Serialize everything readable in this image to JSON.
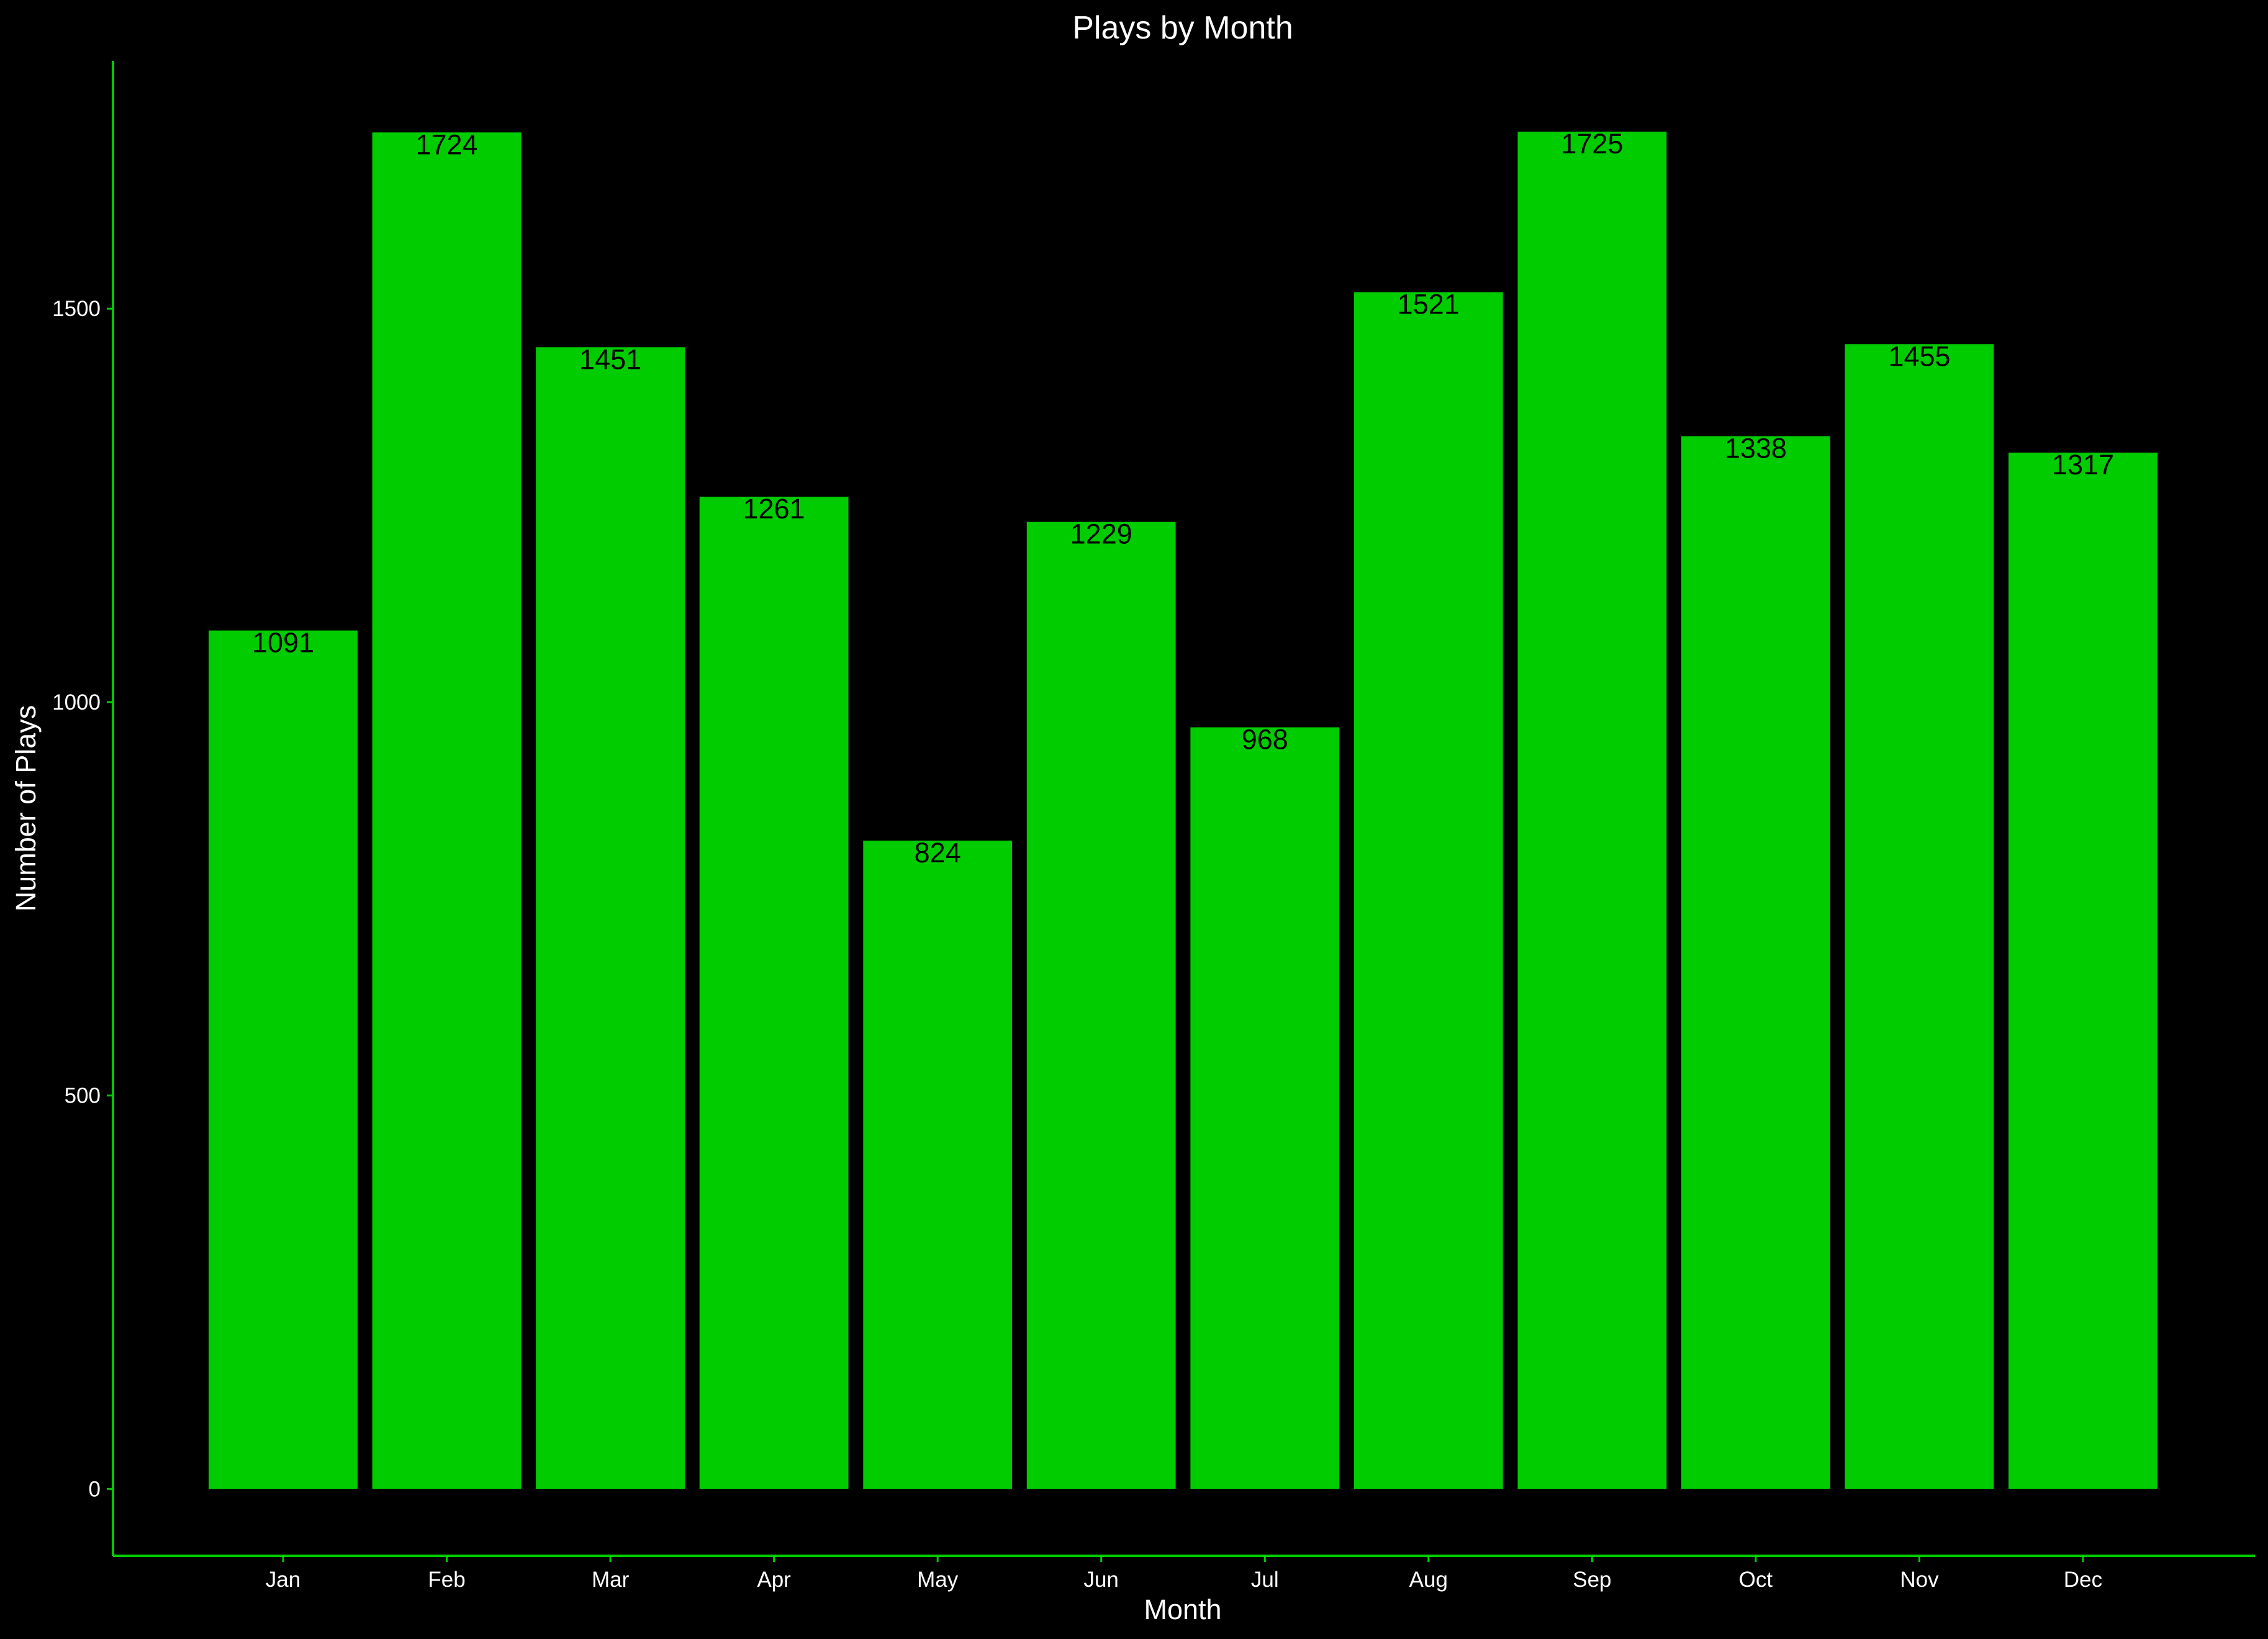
{
  "chart_data": {
    "type": "bar",
    "title": "Plays by Month",
    "xlabel": "Month",
    "ylabel": "Number of Plays",
    "categories": [
      "Jan",
      "Feb",
      "Mar",
      "Apr",
      "May",
      "Jun",
      "Jul",
      "Aug",
      "Sep",
      "Oct",
      "Nov",
      "Dec"
    ],
    "values": [
      1091,
      1724,
      1451,
      1261,
      824,
      1229,
      968,
      1521,
      1725,
      1338,
      1455,
      1317
    ],
    "data_labels": [
      "1091",
      "1724",
      "1451",
      "1261",
      "824",
      "1229",
      "968",
      "1521",
      "1725",
      "1338",
      "1455",
      "1317"
    ],
    "yticks": [
      0,
      500,
      1000,
      1500
    ],
    "ytick_labels": [
      "0",
      "500",
      "1000",
      "1500"
    ],
    "ylim": [
      -85,
      1815
    ],
    "grid": false,
    "legend": "none",
    "colors": {
      "background": "#000000",
      "bar": "#00cc00",
      "axis_line": "#00cc00",
      "text": "#ffffff",
      "bar_label": "#000000"
    }
  }
}
